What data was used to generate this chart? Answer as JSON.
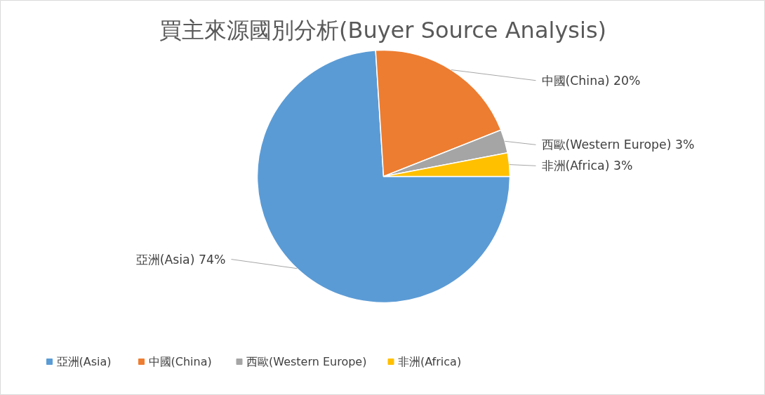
{
  "chart_data": {
    "type": "pie",
    "title": "買主來源國別分析(Buyer Source Analysis)",
    "categories": [
      "亞洲(Asia)",
      "中國(China)",
      "西歐(Western Europe)",
      "非洲(Africa)"
    ],
    "values": [
      74,
      20,
      3,
      3
    ],
    "value_labels": [
      "74%",
      "20%",
      "3%",
      "3%"
    ],
    "colors": [
      "#5b9bd5",
      "#ed7d31",
      "#a5a5a5",
      "#ffc000"
    ],
    "legend": "bottom"
  }
}
